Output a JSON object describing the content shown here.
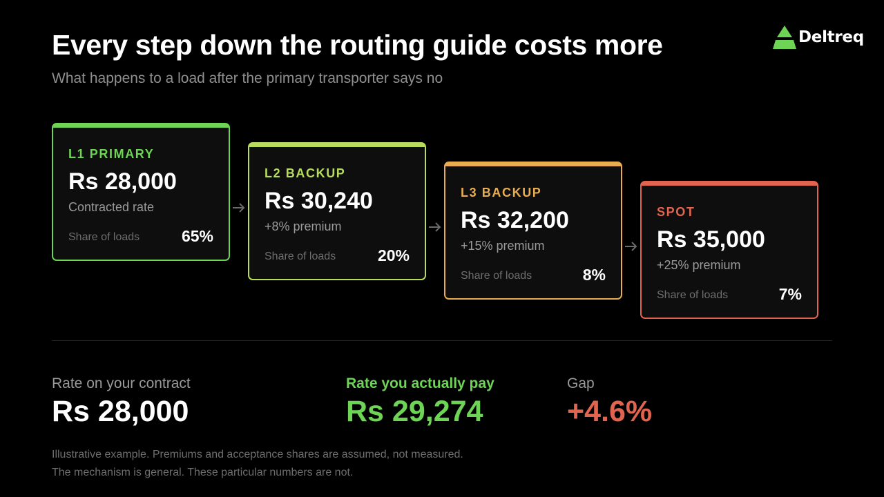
{
  "header": {
    "title": "Every step down the routing guide costs more",
    "subtitle": "What happens to a load after the primary transporter says no"
  },
  "brand": {
    "name": "Deltreq",
    "icon": "triangle-logo-icon",
    "color": "#6ed455"
  },
  "tiers": [
    {
      "level": "L1 PRIMARY",
      "price": "Rs 28,000",
      "note": "Contracted rate",
      "share_label": "Share of loads",
      "share": "65%",
      "color": "#6ed455"
    },
    {
      "level": "L2 BACKUP",
      "price": "Rs 30,240",
      "note": "+8% premium",
      "share_label": "Share of loads",
      "share": "20%",
      "color": "#b8dc5c"
    },
    {
      "level": "L3 BACKUP",
      "price": "Rs 32,200",
      "note": "+15% premium",
      "share_label": "Share of loads",
      "share": "8%",
      "color": "#e8ad53"
    },
    {
      "level": "SPOT",
      "price": "Rs 35,000",
      "note": "+25% premium",
      "share_label": "Share of loads",
      "share": "7%",
      "color": "#e2644e"
    }
  ],
  "summary": {
    "contract": {
      "label": "Rate on your contract",
      "value": "Rs 28,000"
    },
    "actual": {
      "label": "Rate you actually pay",
      "value": "Rs 29,274"
    },
    "gap": {
      "label": "Gap",
      "value": "+4.6%"
    }
  },
  "footnote": {
    "line1": "Illustrative example. Premiums and acceptance shares are assumed, not measured.",
    "line2": "The mechanism is general. These particular numbers are not."
  },
  "colors": {
    "background": "#000000",
    "green": "#6ed455",
    "lime": "#b8dc5c",
    "amber": "#e8ad53",
    "red": "#e2644e"
  }
}
